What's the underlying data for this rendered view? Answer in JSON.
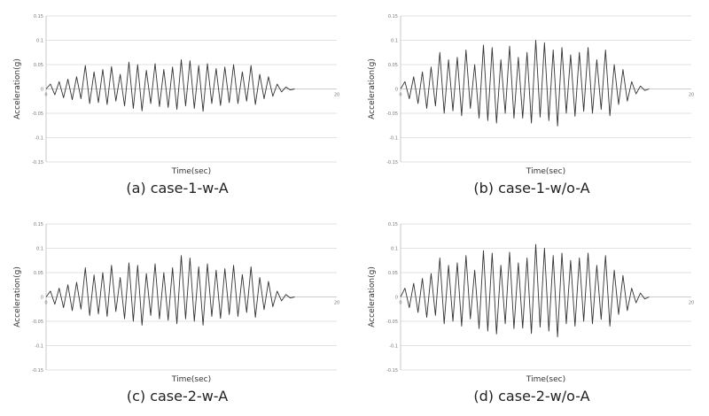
{
  "chart_data": [
    {
      "type": "line",
      "caption": "(a) case-1-w-A",
      "xlabel": "Time(sec)",
      "ylabel": "Acceleration(g)",
      "xlim": [
        0,
        20
      ],
      "ylim": [
        -0.15,
        0.15
      ],
      "yticks": [
        "0.15",
        "0.1",
        "0.05",
        "0",
        "-0.05",
        "-0.1",
        "-0.15"
      ],
      "xticks": [
        "0",
        "20"
      ],
      "grid": true,
      "series": [
        {
          "x": [
            0,
            0.3,
            0.6,
            0.9,
            1.2,
            1.5,
            1.8,
            2.1,
            2.4,
            2.7,
            3.0,
            3.3,
            3.6,
            3.9,
            4.2,
            4.5,
            4.8,
            5.1,
            5.4,
            5.7,
            6.0,
            6.3,
            6.6,
            6.9,
            7.2,
            7.5,
            7.8,
            8.1,
            8.4,
            8.7,
            9.0,
            9.3,
            9.6,
            9.9,
            10.2,
            10.5,
            10.8,
            11.1,
            11.4,
            11.7,
            12.0,
            12.3,
            12.6,
            12.9,
            13.2,
            13.5,
            13.8,
            14.1,
            14.4,
            14.7,
            15.0,
            15.3,
            15.6,
            15.9,
            16.2,
            16.5,
            16.8,
            17.1
          ],
          "y": [
            0,
            0.01,
            -0.012,
            0.015,
            -0.018,
            0.02,
            -0.022,
            0.025,
            -0.02,
            0.048,
            -0.03,
            0.035,
            -0.028,
            0.04,
            -0.032,
            0.046,
            -0.025,
            0.03,
            -0.035,
            0.055,
            -0.04,
            0.05,
            -0.045,
            0.038,
            -0.03,
            0.052,
            -0.036,
            0.04,
            -0.038,
            0.045,
            -0.042,
            0.06,
            -0.035,
            0.058,
            -0.04,
            0.048,
            -0.046,
            0.052,
            -0.03,
            0.042,
            -0.034,
            0.045,
            -0.028,
            0.05,
            -0.03,
            0.035,
            -0.025,
            0.048,
            -0.032,
            0.03,
            -0.02,
            0.025,
            -0.015,
            0.01,
            -0.006,
            0.004,
            -0.002,
            0
          ]
        }
      ]
    },
    {
      "type": "line",
      "caption": "(b) case-1-w/o-A",
      "xlabel": "Time(sec)",
      "ylabel": "Acceleration(g)",
      "xlim": [
        0,
        20
      ],
      "ylim": [
        -0.15,
        0.15
      ],
      "yticks": [
        "0.15",
        "0.1",
        "0.05",
        "0",
        "-0.05",
        "-0.1",
        "-0.15"
      ],
      "xticks": [
        "0",
        "20"
      ],
      "grid": true,
      "series": [
        {
          "x": [
            0,
            0.3,
            0.6,
            0.9,
            1.2,
            1.5,
            1.8,
            2.1,
            2.4,
            2.7,
            3.0,
            3.3,
            3.6,
            3.9,
            4.2,
            4.5,
            4.8,
            5.1,
            5.4,
            5.7,
            6.0,
            6.3,
            6.6,
            6.9,
            7.2,
            7.5,
            7.8,
            8.1,
            8.4,
            8.7,
            9.0,
            9.3,
            9.6,
            9.9,
            10.2,
            10.5,
            10.8,
            11.1,
            11.4,
            11.7,
            12.0,
            12.3,
            12.6,
            12.9,
            13.2,
            13.5,
            13.8,
            14.1,
            14.4,
            14.7,
            15.0,
            15.3,
            15.6,
            15.9,
            16.2,
            16.5,
            16.8,
            17.1
          ],
          "y": [
            0,
            0.015,
            -0.02,
            0.025,
            -0.03,
            0.035,
            -0.04,
            0.045,
            -0.035,
            0.075,
            -0.05,
            0.06,
            -0.045,
            0.065,
            -0.055,
            0.08,
            -0.04,
            0.05,
            -0.06,
            0.09,
            -0.065,
            0.085,
            -0.07,
            0.06,
            -0.05,
            0.088,
            -0.06,
            0.065,
            -0.06,
            0.075,
            -0.07,
            0.1,
            -0.058,
            0.095,
            -0.065,
            0.08,
            -0.076,
            0.085,
            -0.05,
            0.07,
            -0.056,
            0.075,
            -0.046,
            0.085,
            -0.05,
            0.06,
            -0.042,
            0.08,
            -0.055,
            0.05,
            -0.032,
            0.04,
            -0.025,
            0.015,
            -0.01,
            0.006,
            -0.003,
            0
          ]
        }
      ]
    },
    {
      "type": "line",
      "caption": "(c) case-2-w-A",
      "xlabel": "Time(sec)",
      "ylabel": "Acceleration(g)",
      "xlim": [
        0,
        20
      ],
      "ylim": [
        -0.15,
        0.15
      ],
      "yticks": [
        "0.15",
        "0.1",
        "0.05",
        "0",
        "-0.05",
        "-0.1",
        "-0.15"
      ],
      "xticks": [
        "0",
        "20"
      ],
      "grid": true,
      "series": [
        {
          "x": [
            0,
            0.3,
            0.6,
            0.9,
            1.2,
            1.5,
            1.8,
            2.1,
            2.4,
            2.7,
            3.0,
            3.3,
            3.6,
            3.9,
            4.2,
            4.5,
            4.8,
            5.1,
            5.4,
            5.7,
            6.0,
            6.3,
            6.6,
            6.9,
            7.2,
            7.5,
            7.8,
            8.1,
            8.4,
            8.7,
            9.0,
            9.3,
            9.6,
            9.9,
            10.2,
            10.5,
            10.8,
            11.1,
            11.4,
            11.7,
            12.0,
            12.3,
            12.6,
            12.9,
            13.2,
            13.5,
            13.8,
            14.1,
            14.4,
            14.7,
            15.0,
            15.3,
            15.6,
            15.9,
            16.2,
            16.5,
            16.8,
            17.1
          ],
          "y": [
            0,
            0.012,
            -0.015,
            0.018,
            -0.022,
            0.025,
            -0.028,
            0.03,
            -0.025,
            0.06,
            -0.038,
            0.045,
            -0.035,
            0.05,
            -0.04,
            0.065,
            -0.03,
            0.04,
            -0.045,
            0.07,
            -0.05,
            0.065,
            -0.058,
            0.048,
            -0.038,
            0.068,
            -0.045,
            0.05,
            -0.048,
            0.06,
            -0.055,
            0.085,
            -0.045,
            0.08,
            -0.05,
            0.062,
            -0.058,
            0.068,
            -0.04,
            0.055,
            -0.044,
            0.058,
            -0.036,
            0.065,
            -0.04,
            0.046,
            -0.032,
            0.062,
            -0.042,
            0.04,
            -0.026,
            0.032,
            -0.02,
            0.012,
            -0.008,
            0.005,
            -0.002,
            0
          ]
        }
      ]
    },
    {
      "type": "line",
      "caption": "(d) case-2-w/o-A",
      "xlabel": "Time(sec)",
      "ylabel": "Acceleration(g)",
      "xlim": [
        0,
        20
      ],
      "ylim": [
        -0.15,
        0.15
      ],
      "yticks": [
        "0.15",
        "0.1",
        "0.05",
        "0",
        "-0.05",
        "-0.1",
        "-0.15"
      ],
      "xticks": [
        "0",
        "20"
      ],
      "grid": true,
      "series": [
        {
          "x": [
            0,
            0.3,
            0.6,
            0.9,
            1.2,
            1.5,
            1.8,
            2.1,
            2.4,
            2.7,
            3.0,
            3.3,
            3.6,
            3.9,
            4.2,
            4.5,
            4.8,
            5.1,
            5.4,
            5.7,
            6.0,
            6.3,
            6.6,
            6.9,
            7.2,
            7.5,
            7.8,
            8.1,
            8.4,
            8.7,
            9.0,
            9.3,
            9.6,
            9.9,
            10.2,
            10.5,
            10.8,
            11.1,
            11.4,
            11.7,
            12.0,
            12.3,
            12.6,
            12.9,
            13.2,
            13.5,
            13.8,
            14.1,
            14.4,
            14.7,
            15.0,
            15.3,
            15.6,
            15.9,
            16.2,
            16.5,
            16.8,
            17.1
          ],
          "y": [
            0,
            0.018,
            -0.022,
            0.028,
            -0.032,
            0.038,
            -0.042,
            0.048,
            -0.038,
            0.08,
            -0.055,
            0.065,
            -0.05,
            0.07,
            -0.06,
            0.085,
            -0.045,
            0.055,
            -0.065,
            0.095,
            -0.07,
            0.09,
            -0.076,
            0.065,
            -0.055,
            0.092,
            -0.065,
            0.07,
            -0.064,
            0.08,
            -0.075,
            0.108,
            -0.062,
            0.1,
            -0.07,
            0.085,
            -0.082,
            0.09,
            -0.055,
            0.075,
            -0.06,
            0.08,
            -0.05,
            0.09,
            -0.055,
            0.065,
            -0.046,
            0.085,
            -0.06,
            0.055,
            -0.036,
            0.044,
            -0.028,
            0.018,
            -0.012,
            0.008,
            -0.004,
            0
          ]
        }
      ]
    }
  ]
}
